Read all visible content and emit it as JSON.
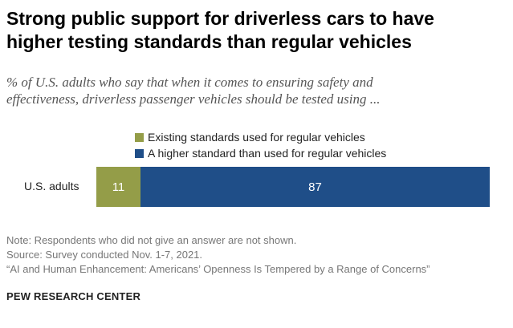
{
  "header": {
    "title_line1": "Strong public support for driverless cars to have",
    "title_line2": "higher testing standards than regular vehicles",
    "subtitle_line1": "% of U.S. adults who say that when it comes to ensuring safety and",
    "subtitle_line2": "effectiveness, driverless passenger vehicles should be tested using ..."
  },
  "chart_data": {
    "type": "bar",
    "orientation": "horizontal",
    "stacked": true,
    "categories": [
      "U.S. adults"
    ],
    "series": [
      {
        "name": "Existing standards used for regular vehicles",
        "values": [
          11
        ],
        "color": "#949d48"
      },
      {
        "name": "A higher standard than used for regular vehicles",
        "values": [
          87
        ],
        "color": "#1f4e88"
      }
    ],
    "xlim": [
      0,
      100
    ],
    "legend_position": "top"
  },
  "footer": {
    "note": "Note: Respondents who did not give an answer are not shown.",
    "source": "Source: Survey conducted Nov. 1-7, 2021.",
    "report": "“AI and Human Enhancement: Americans’ Openness Is Tempered by a Range of Concerns”",
    "brand": "PEW RESEARCH CENTER"
  }
}
